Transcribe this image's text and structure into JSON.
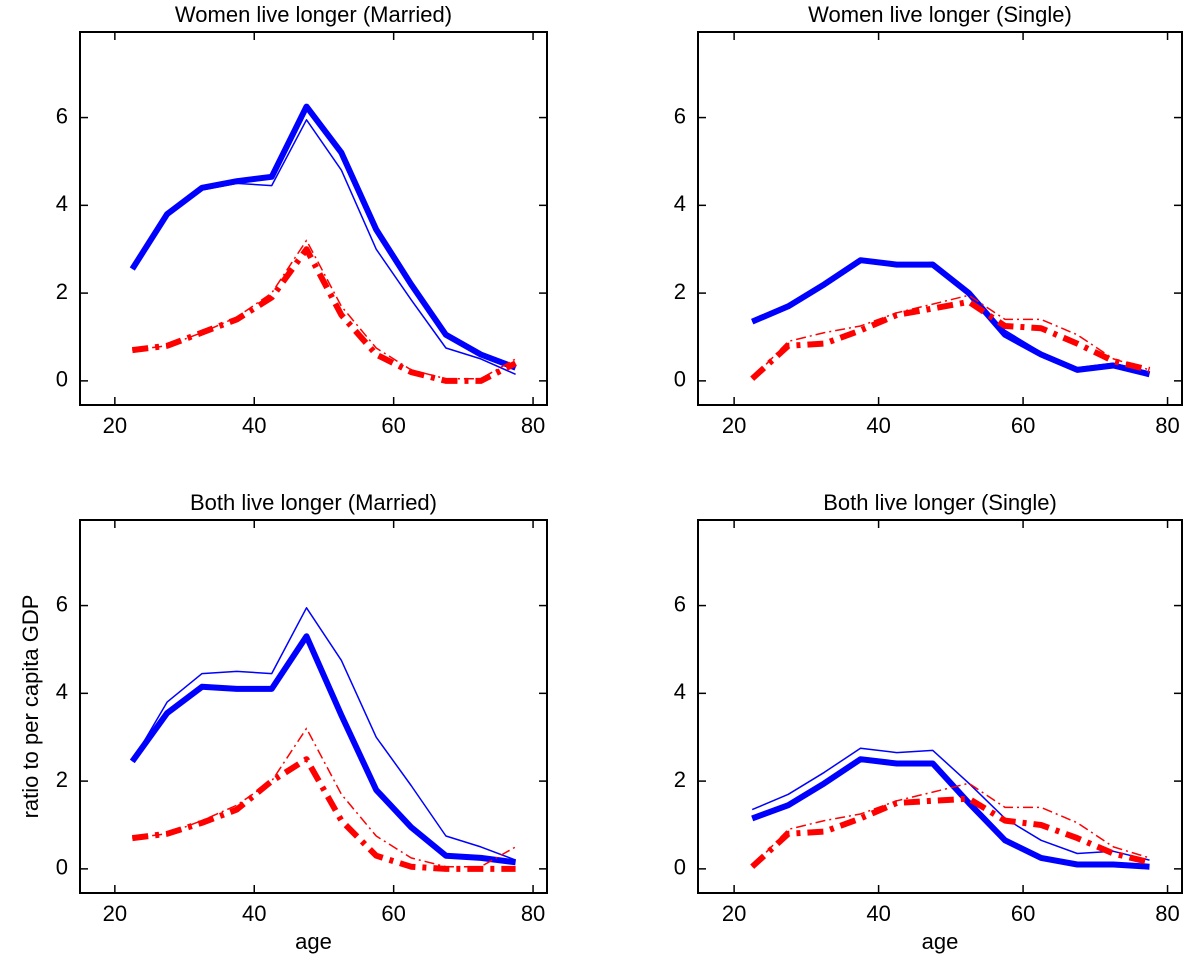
{
  "chart_data": [
    {
      "type": "line",
      "title": "Women live longer (Married)",
      "x": [
        22.5,
        27.5,
        32.5,
        37.5,
        42.5,
        47.5,
        52.5,
        57.5,
        62.5,
        67.5,
        72.5,
        77.5
      ],
      "xlim": [
        15,
        82
      ],
      "xticks": [
        20,
        40,
        60,
        80
      ],
      "ylim": [
        -0.55,
        7.95
      ],
      "yticks": [
        0,
        2,
        4,
        6
      ],
      "series": [
        {
          "color": "#0000ff",
          "linewidth": 6,
          "linestyle": "solid",
          "values": [
            2.55,
            3.8,
            4.4,
            4.55,
            4.65,
            6.25,
            5.2,
            3.45,
            2.2,
            1.05,
            0.6,
            0.3
          ]
        },
        {
          "color": "#0000ff",
          "linewidth": 1.5,
          "linestyle": "solid",
          "values": [
            2.55,
            3.8,
            4.35,
            4.5,
            4.45,
            5.95,
            4.8,
            3.0,
            1.85,
            0.75,
            0.5,
            0.15
          ]
        },
        {
          "color": "#ff0000",
          "linewidth": 6,
          "linestyle": "dashdot",
          "values": [
            0.7,
            0.8,
            1.1,
            1.4,
            1.9,
            3.0,
            1.5,
            0.6,
            0.2,
            0.0,
            0.0,
            0.4
          ]
        },
        {
          "color": "#ff0000",
          "linewidth": 1.5,
          "linestyle": "dashdot",
          "values": [
            0.7,
            0.8,
            1.1,
            1.45,
            2.0,
            3.2,
            1.7,
            0.75,
            0.25,
            0.05,
            0.05,
            0.5
          ]
        }
      ]
    },
    {
      "type": "line",
      "title": "Women live longer (Single)",
      "x": [
        22.5,
        27.5,
        32.5,
        37.5,
        42.5,
        47.5,
        52.5,
        57.5,
        62.5,
        67.5,
        72.5,
        77.5
      ],
      "xlim": [
        15,
        82
      ],
      "xticks": [
        20,
        40,
        60,
        80
      ],
      "ylim": [
        -0.55,
        7.95
      ],
      "yticks": [
        0,
        2,
        4,
        6
      ],
      "series": [
        {
          "color": "#0000ff",
          "linewidth": 6,
          "linestyle": "solid",
          "values": [
            1.35,
            1.7,
            2.2,
            2.75,
            2.65,
            2.65,
            2.0,
            1.05,
            0.6,
            0.25,
            0.35,
            0.15
          ]
        },
        {
          "color": "#0000ff",
          "linewidth": 1.5,
          "linestyle": "solid",
          "values": [
            1.35,
            1.7,
            2.2,
            2.75,
            2.65,
            2.7,
            1.95,
            1.15,
            0.65,
            0.3,
            0.4,
            0.2
          ]
        },
        {
          "color": "#ff0000",
          "linewidth": 6,
          "linestyle": "dashdot",
          "values": [
            0.05,
            0.8,
            0.85,
            1.15,
            1.5,
            1.65,
            1.8,
            1.25,
            1.2,
            0.85,
            0.45,
            0.25
          ]
        },
        {
          "color": "#ff0000",
          "linewidth": 1.5,
          "linestyle": "dashdot",
          "values": [
            0.05,
            0.9,
            1.1,
            1.25,
            1.55,
            1.75,
            1.95,
            1.4,
            1.4,
            1.05,
            0.5,
            0.25
          ]
        }
      ]
    },
    {
      "type": "line",
      "title": "Both live longer (Married)",
      "xlabel": "age",
      "ylabel": "ratio to per capita GDP",
      "x": [
        22.5,
        27.5,
        32.5,
        37.5,
        42.5,
        47.5,
        52.5,
        57.5,
        62.5,
        67.5,
        72.5,
        77.5
      ],
      "xlim": [
        15,
        82
      ],
      "xticks": [
        20,
        40,
        60,
        80
      ],
      "ylim": [
        -0.55,
        7.95
      ],
      "yticks": [
        0,
        2,
        4,
        6
      ],
      "series": [
        {
          "color": "#0000ff",
          "linewidth": 6,
          "linestyle": "solid",
          "values": [
            2.45,
            3.55,
            4.15,
            4.1,
            4.1,
            5.3,
            3.5,
            1.8,
            0.95,
            0.3,
            0.25,
            0.15
          ]
        },
        {
          "color": "#0000ff",
          "linewidth": 1.5,
          "linestyle": "solid",
          "values": [
            2.45,
            3.8,
            4.45,
            4.5,
            4.45,
            5.95,
            4.75,
            3.0,
            1.9,
            0.75,
            0.5,
            0.2
          ]
        },
        {
          "color": "#ff0000",
          "linewidth": 6,
          "linestyle": "dashdot",
          "values": [
            0.7,
            0.8,
            1.05,
            1.35,
            2.0,
            2.5,
            1.1,
            0.3,
            0.05,
            0.0,
            0.0,
            0.0
          ]
        },
        {
          "color": "#ff0000",
          "linewidth": 1.5,
          "linestyle": "dashdot",
          "values": [
            0.7,
            0.8,
            1.1,
            1.45,
            2.0,
            3.2,
            1.7,
            0.75,
            0.25,
            0.05,
            0.05,
            0.5
          ]
        }
      ]
    },
    {
      "type": "line",
      "title": "Both live longer (Single)",
      "xlabel": "age",
      "x": [
        22.5,
        27.5,
        32.5,
        37.5,
        42.5,
        47.5,
        52.5,
        57.5,
        62.5,
        67.5,
        72.5,
        77.5
      ],
      "xlim": [
        15,
        82
      ],
      "xticks": [
        20,
        40,
        60,
        80
      ],
      "ylim": [
        -0.55,
        7.95
      ],
      "yticks": [
        0,
        2,
        4,
        6
      ],
      "series": [
        {
          "color": "#0000ff",
          "linewidth": 6,
          "linestyle": "solid",
          "values": [
            1.15,
            1.45,
            1.95,
            2.5,
            2.4,
            2.4,
            1.5,
            0.65,
            0.25,
            0.1,
            0.1,
            0.05
          ]
        },
        {
          "color": "#0000ff",
          "linewidth": 1.5,
          "linestyle": "solid",
          "values": [
            1.35,
            1.7,
            2.2,
            2.75,
            2.65,
            2.7,
            1.95,
            1.15,
            0.65,
            0.35,
            0.4,
            0.2
          ]
        },
        {
          "color": "#ff0000",
          "linewidth": 6,
          "linestyle": "dashdot",
          "values": [
            0.05,
            0.8,
            0.85,
            1.15,
            1.5,
            1.55,
            1.6,
            1.1,
            1.0,
            0.7,
            0.35,
            0.15
          ]
        },
        {
          "color": "#ff0000",
          "linewidth": 1.5,
          "linestyle": "dashdot",
          "values": [
            0.05,
            0.9,
            1.1,
            1.25,
            1.55,
            1.75,
            1.95,
            1.4,
            1.4,
            1.05,
            0.5,
            0.25
          ]
        }
      ]
    }
  ]
}
